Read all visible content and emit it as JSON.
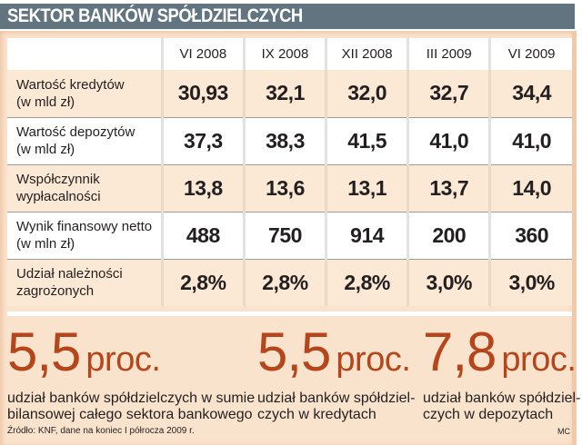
{
  "title": "SEKTOR BANKÓW SPÓŁDZIELCZYCH",
  "table": {
    "columns": [
      "VI 2008",
      "IX 2008",
      "XII 2008",
      "III 2009",
      "VI 2009"
    ],
    "rows": [
      {
        "label_line1": "Wartość kredytów",
        "label_line2": "(w mld zł)",
        "values": [
          "30,93",
          "32,1",
          "32,0",
          "32,7",
          "34,4"
        ]
      },
      {
        "label_line1": "Wartość depozytów",
        "label_line2": "(w mld zł)",
        "values": [
          "37,3",
          "38,3",
          "41,5",
          "41,0",
          "41,0"
        ]
      },
      {
        "label_line1": "Współczynnik",
        "label_line2": "wypłacalności",
        "values": [
          "13,8",
          "13,6",
          "13,1",
          "13,7",
          "14,0"
        ]
      },
      {
        "label_line1": "Wynik finansowy netto",
        "label_line2": "(w mln zł)",
        "values": [
          "488",
          "750",
          "914",
          "200",
          "360"
        ]
      },
      {
        "label_line1": "Udział należności",
        "label_line2": "zagrożonych",
        "values": [
          "2,8%",
          "2,8%",
          "2,8%",
          "3,0%",
          "3,0%"
        ]
      }
    ]
  },
  "stats": [
    {
      "value": "5,5",
      "unit": "proc.",
      "desc_line1": "udział banków spółdzielczych w sumie",
      "desc_line2": "bilansowej całego sektora bankowego"
    },
    {
      "value": "5,5",
      "unit": "proc.",
      "desc_line1": "udział banków spółdziel-",
      "desc_line2": "czych w kredytach"
    },
    {
      "value": "7,8",
      "unit": "proc.",
      "desc_line1": "udział banków spółdziel-",
      "desc_line2": "czych w depozytach"
    }
  ],
  "source": "Źródło: KNF, dane na koniec I półrocza 2009 r.",
  "credit": "MC",
  "colors": {
    "title_bar": "#627480",
    "panel_bg": "#fae3cc",
    "accent_number": "#b5451b",
    "row_white": "#ffffff",
    "row_peach": "#fbe9d5"
  },
  "chart_data": {
    "type": "table",
    "title": "SEKTOR BANKÓW SPÓŁDZIELCZYCH",
    "categories": [
      "VI 2008",
      "IX 2008",
      "XII 2008",
      "III 2009",
      "VI 2009"
    ],
    "series": [
      {
        "name": "Wartość kredytów (w mld zł)",
        "values": [
          30.93,
          32.1,
          32.0,
          32.7,
          34.4
        ]
      },
      {
        "name": "Wartość depozytów (w mld zł)",
        "values": [
          37.3,
          38.3,
          41.5,
          41.0,
          41.0
        ]
      },
      {
        "name": "Współczynnik wypłacalności",
        "values": [
          13.8,
          13.6,
          13.1,
          13.7,
          14.0
        ]
      },
      {
        "name": "Wynik finansowy netto (w mln zł)",
        "values": [
          488,
          750,
          914,
          200,
          360
        ]
      },
      {
        "name": "Udział należności zagrożonych (%)",
        "values": [
          2.8,
          2.8,
          2.8,
          3.0,
          3.0
        ]
      }
    ],
    "annotations": [
      "5,5 proc. udział banków spółdzielczych w sumie bilansowej całego sektora bankowego",
      "5,5 proc. udział banków spółdzielczych w kredytach",
      "7,8 proc. udział banków spółdzielczych w depozytach"
    ],
    "source": "Źródło: KNF, dane na koniec I półrocza 2009 r."
  }
}
